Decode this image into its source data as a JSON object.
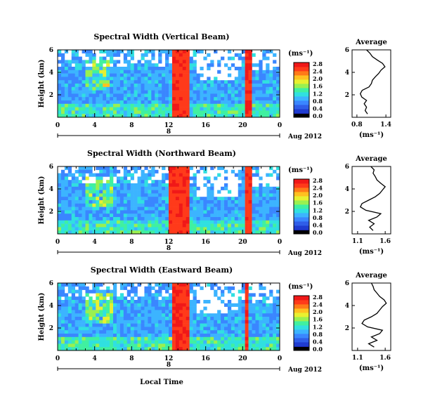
{
  "chart_data": [
    {
      "type": "heatmap",
      "title": "Spectral Width (Vertical Beam)",
      "ylabel": "Height (km)",
      "yticks": [
        "2",
        "4",
        "6"
      ],
      "xticks": [
        "0",
        "4",
        "8",
        "12",
        "16",
        "20",
        "0"
      ],
      "date_marker": "8",
      "date_label": "Aug 2012",
      "xlim": [
        0,
        24
      ],
      "ylim": [
        0,
        6
      ],
      "colorbar_unit": "(ms⁻¹)",
      "colorbar_ticks": [
        "0.0",
        "0.4",
        "0.8",
        "1.2",
        "1.6",
        "2.0",
        "2.4",
        "2.8"
      ],
      "strong_bands_hours": [
        [
          12.3,
          14.2
        ],
        [
          20.2,
          20.9
        ]
      ],
      "average_profile": {
        "title": "Average",
        "xlabel": "(ms⁻¹)",
        "xticks": [
          "0.8",
          "1.4"
        ],
        "xlim": [
          0.7,
          1.5
        ],
        "yticks": [
          "2",
          "4",
          "6"
        ],
        "height_km": [
          0.3,
          0.6,
          0.9,
          1.2,
          1.5,
          1.8,
          2.1,
          2.4,
          2.7,
          3.0,
          3.3,
          3.6,
          3.9,
          4.2,
          4.5,
          4.8,
          5.1,
          5.4,
          5.7,
          6.0
        ],
        "value": [
          1.02,
          0.97,
          1.0,
          0.95,
          1.0,
          0.9,
          0.87,
          0.91,
          1.05,
          1.1,
          1.12,
          1.18,
          1.25,
          1.3,
          1.38,
          1.33,
          1.22,
          1.12,
          1.07,
          1.0
        ]
      }
    },
    {
      "type": "heatmap",
      "title": "Spectral Width (Northward Beam)",
      "ylabel": "Height (km)",
      "yticks": [
        "2",
        "4",
        "6"
      ],
      "xticks": [
        "0",
        "4",
        "8",
        "12",
        "16",
        "20",
        "0"
      ],
      "date_marker": "8",
      "date_label": "Aug 2012",
      "xlim": [
        0,
        24
      ],
      "ylim": [
        0,
        6
      ],
      "colorbar_unit": "(ms⁻¹)",
      "colorbar_ticks": [
        "0.0",
        "0.4",
        "0.8",
        "1.2",
        "1.6",
        "2.0",
        "2.4",
        "2.8"
      ],
      "strong_bands_hours": [
        [
          12.0,
          14.1
        ],
        [
          20.2,
          20.9
        ]
      ],
      "average_profile": {
        "title": "Average",
        "xlabel": "(ms⁻¹)",
        "xticks": [
          "1.1",
          "1.6"
        ],
        "xlim": [
          1.0,
          1.7
        ],
        "yticks": [
          "2",
          "4",
          "6"
        ],
        "height_km": [
          0.3,
          0.6,
          0.9,
          1.2,
          1.5,
          1.8,
          2.1,
          2.4,
          2.7,
          3.0,
          3.3,
          3.6,
          3.9,
          4.2,
          4.5,
          4.8,
          5.1,
          5.4,
          5.7,
          6.0
        ],
        "value": [
          1.38,
          1.32,
          1.4,
          1.3,
          1.45,
          1.52,
          1.25,
          1.15,
          1.18,
          1.3,
          1.42,
          1.5,
          1.55,
          1.6,
          1.52,
          1.45,
          1.42,
          1.38,
          1.4,
          1.34
        ]
      }
    },
    {
      "type": "heatmap",
      "title": "Spectral Width (Eastward Beam)",
      "ylabel": "Height (km)",
      "yticks": [
        "2",
        "4",
        "6"
      ],
      "xticks": [
        "0",
        "4",
        "8",
        "12",
        "16",
        "20",
        "0"
      ],
      "xlabel": "Local Time",
      "date_marker": "8",
      "date_label": "Aug 2012",
      "xlim": [
        0,
        24
      ],
      "ylim": [
        0,
        6
      ],
      "colorbar_unit": "(ms⁻¹)",
      "colorbar_ticks": [
        "0.0",
        "0.4",
        "0.8",
        "1.2",
        "1.6",
        "2.0",
        "2.4",
        "2.8"
      ],
      "strong_bands_hours": [
        [
          12.2,
          14.3
        ],
        [
          20.2,
          20.8
        ]
      ],
      "average_profile": {
        "title": "Average",
        "xlabel": "(ms⁻¹)",
        "xticks": [
          "1.1",
          "1.6"
        ],
        "xlim": [
          1.0,
          1.7
        ],
        "yticks": [
          "2",
          "4",
          "6"
        ],
        "height_km": [
          0.3,
          0.6,
          0.9,
          1.2,
          1.5,
          1.8,
          2.1,
          2.4,
          2.7,
          3.0,
          3.3,
          3.6,
          3.9,
          4.2,
          4.5,
          4.8,
          5.1,
          5.4,
          5.7,
          6.0
        ],
        "value": [
          1.4,
          1.3,
          1.45,
          1.35,
          1.5,
          1.55,
          1.28,
          1.18,
          1.22,
          1.35,
          1.45,
          1.5,
          1.55,
          1.62,
          1.58,
          1.5,
          1.45,
          1.4,
          1.38,
          1.35
        ]
      }
    }
  ]
}
